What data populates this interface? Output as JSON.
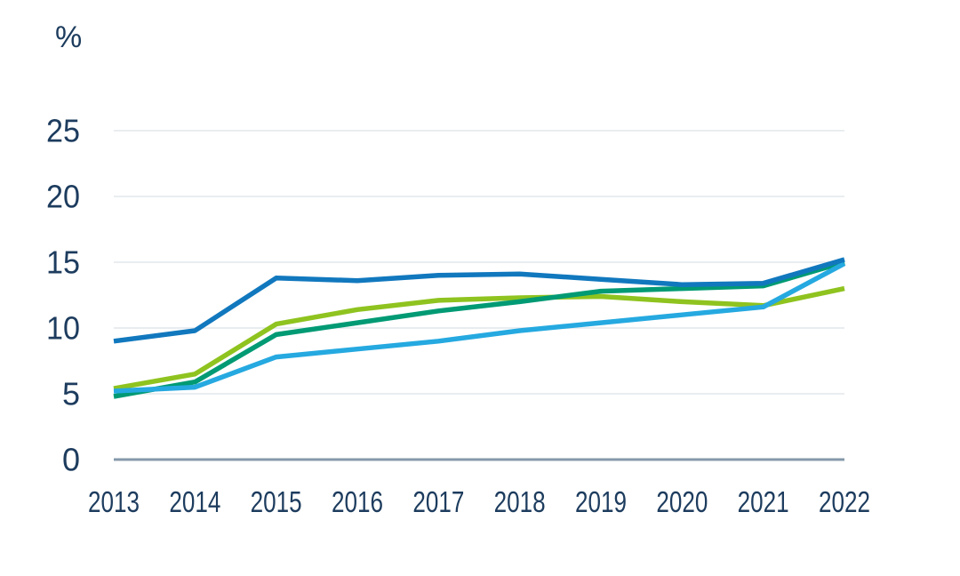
{
  "chart_data": {
    "type": "line",
    "title": "",
    "xlabel": "",
    "ylabel": "%",
    "unit_label": "%",
    "categories": [
      "2013",
      "2014",
      "2015",
      "2016",
      "2017",
      "2018",
      "2019",
      "2020",
      "2021",
      "2022"
    ],
    "series": [
      {
        "name": "light-green-series",
        "color": "#8fc31f",
        "values": [
          5.4,
          6.5,
          10.3,
          11.4,
          12.1,
          12.3,
          12.4,
          12.0,
          11.7,
          13.0
        ]
      },
      {
        "name": "dark-green-series",
        "color": "#009a74",
        "values": [
          4.8,
          5.9,
          9.5,
          10.4,
          11.3,
          12.0,
          12.8,
          13.0,
          13.2,
          15.0
        ]
      },
      {
        "name": "light-blue-series",
        "color": "#25a9e0",
        "values": [
          5.2,
          5.5,
          7.8,
          8.4,
          9.0,
          9.8,
          10.4,
          11.0,
          11.6,
          14.9
        ]
      },
      {
        "name": "dark-blue-series",
        "color": "#1178be",
        "values": [
          9.0,
          9.8,
          13.8,
          13.6,
          14.0,
          14.1,
          13.7,
          13.3,
          13.4,
          15.2
        ]
      }
    ],
    "ylim": [
      0,
      25
    ],
    "yticks": [
      0,
      5,
      10,
      15,
      20,
      25
    ],
    "grid": "horizontal-only",
    "legend": "none"
  },
  "style_colors": {
    "tick_text": "#1d3c5e",
    "gridline": "#e9edf0",
    "zero_axis_line": "#8599aa",
    "background": "#ffffff"
  }
}
